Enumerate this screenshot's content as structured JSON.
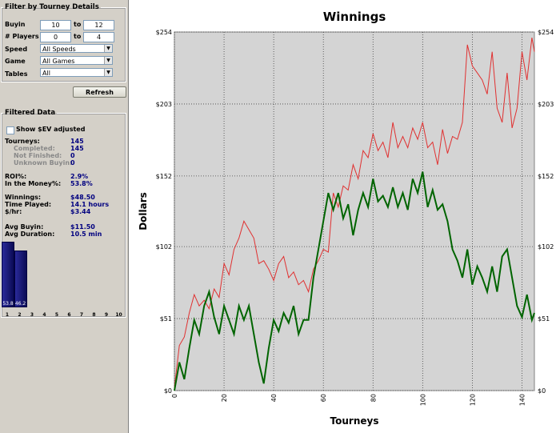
{
  "filter": {
    "title": "Filter by Tourney Details",
    "buyin_label": "Buyin",
    "buyin_from": "10",
    "buyin_to": "12",
    "players_label": "# Players",
    "players_from": "0",
    "players_to": "4",
    "to_label": "to",
    "speed_label": "Speed",
    "speed_value": "All Speeds",
    "game_label": "Game",
    "game_value": "All Games",
    "tables_label": "Tables",
    "tables_value": "All",
    "refresh_label": "Refresh"
  },
  "filtered": {
    "title": "Filtered Data",
    "show_ev_label": "Show $EV adjusted",
    "tourneys_label": "Tourneys:",
    "tourneys_value": "145",
    "completed_label": "Completed:",
    "completed_value": "145",
    "not_finished_label": "Not Finished:",
    "not_finished_value": "0",
    "unknown_buyin_label": "Unknown Buyin:",
    "unknown_buyin_value": "0",
    "roi_label": "ROI%:",
    "roi_value": "2.9%",
    "itm_label": "In the Money%:",
    "itm_value": "53.8%",
    "winnings_label": "Winnings:",
    "winnings_value": "$48.50",
    "time_label": "Time Played:",
    "time_value": "14.1 hours",
    "rate_label": "$/hr:",
    "rate_value": "$3.44",
    "avg_buyin_label": "Avg Buyin:",
    "avg_buyin_value": "$11.50",
    "avg_duration_label": "Avg Duration:",
    "avg_duration_value": "10.5 min"
  },
  "finish_bars": {
    "positions": [
      "1",
      "2",
      "3",
      "4",
      "5",
      "6",
      "7",
      "8",
      "9",
      "10"
    ],
    "percent": [
      53.8,
      46.2,
      0,
      0,
      0,
      0,
      0,
      0,
      0,
      0
    ],
    "labels": [
      "53.8",
      "46.2"
    ]
  },
  "chart_data": {
    "type": "line",
    "title": "Winnings",
    "xlabel": "Tourneys",
    "ylabel": "Dollars",
    "xlim": [
      0,
      145
    ],
    "ylim": [
      0,
      254
    ],
    "yticks": [
      0,
      51,
      102,
      152,
      203,
      254
    ],
    "ytick_labels": [
      "$0",
      "$51",
      "$102",
      "$152",
      "$203",
      "$254"
    ],
    "xticks": [
      0,
      20,
      40,
      60,
      80,
      100,
      120,
      140
    ],
    "xtick_labels": [
      "0",
      "20",
      "40",
      "60",
      "80",
      "100",
      "120",
      "140"
    ],
    "grid": true,
    "colors": {
      "red": "#e03030",
      "green": "#006400",
      "plot_bg": "#d4d4d4"
    },
    "series": [
      {
        "color": "#e03030",
        "x": [
          0,
          2,
          4,
          6,
          8,
          10,
          12,
          14,
          16,
          18,
          20,
          22,
          24,
          26,
          28,
          30,
          32,
          34,
          36,
          38,
          40,
          42,
          44,
          46,
          48,
          50,
          52,
          54,
          56,
          58,
          60,
          62,
          64,
          66,
          68,
          70,
          72,
          74,
          76,
          78,
          80,
          82,
          84,
          86,
          88,
          90,
          92,
          94,
          96,
          98,
          100,
          102,
          104,
          106,
          108,
          110,
          112,
          114,
          116,
          118,
          120,
          122,
          124,
          126,
          128,
          130,
          132,
          134,
          136,
          138,
          140,
          142,
          144,
          145
        ],
        "y": [
          2,
          32,
          38,
          55,
          68,
          60,
          64,
          58,
          72,
          66,
          90,
          82,
          100,
          108,
          120,
          114,
          108,
          90,
          92,
          86,
          78,
          90,
          95,
          80,
          84,
          75,
          78,
          70,
          86,
          92,
          100,
          98,
          140,
          130,
          145,
          142,
          160,
          150,
          170,
          165,
          182,
          170,
          176,
          165,
          190,
          172,
          180,
          172,
          186,
          178,
          190,
          172,
          176,
          160,
          185,
          168,
          180,
          178,
          190,
          245,
          230,
          225,
          220,
          210,
          240,
          200,
          190,
          225,
          186,
          200,
          240,
          220,
          250,
          240
        ]
      },
      {
        "color": "#006400",
        "x": [
          0,
          2,
          4,
          6,
          8,
          10,
          12,
          14,
          16,
          18,
          20,
          22,
          24,
          26,
          28,
          30,
          32,
          34,
          36,
          38,
          40,
          42,
          44,
          46,
          48,
          50,
          52,
          54,
          56,
          58,
          60,
          62,
          64,
          66,
          68,
          70,
          72,
          74,
          76,
          78,
          80,
          82,
          84,
          86,
          88,
          90,
          92,
          94,
          96,
          98,
          100,
          102,
          104,
          106,
          108,
          110,
          112,
          114,
          116,
          118,
          120,
          122,
          124,
          126,
          128,
          130,
          132,
          134,
          136,
          138,
          140,
          142,
          144,
          145
        ],
        "y": [
          0,
          20,
          8,
          30,
          50,
          40,
          60,
          70,
          52,
          40,
          60,
          50,
          40,
          60,
          50,
          60,
          40,
          20,
          5,
          30,
          50,
          42,
          55,
          48,
          60,
          40,
          50,
          50,
          80,
          100,
          120,
          140,
          128,
          140,
          122,
          132,
          110,
          128,
          140,
          130,
          150,
          134,
          138,
          130,
          144,
          130,
          140,
          128,
          150,
          140,
          155,
          130,
          142,
          128,
          132,
          120,
          100,
          92,
          80,
          100,
          75,
          88,
          80,
          70,
          88,
          70,
          95,
          100,
          80,
          60,
          52,
          68,
          50,
          55
        ]
      }
    ]
  }
}
